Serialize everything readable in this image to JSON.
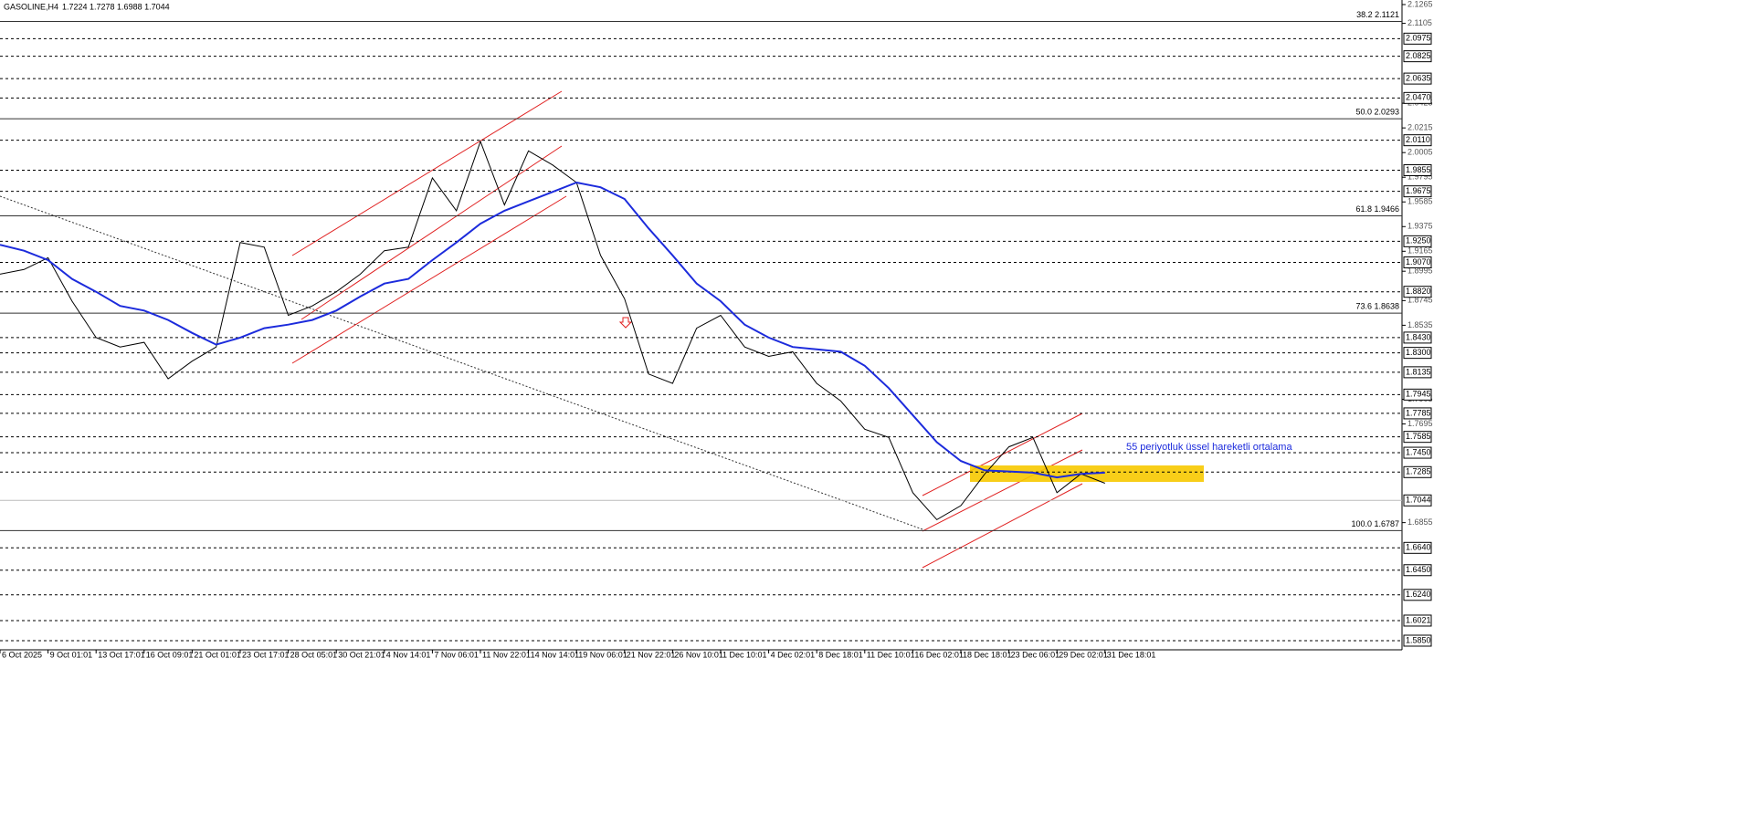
{
  "chart_data": {
    "type": "line",
    "title": "GASOLINE,H4",
    "quote": "1.7224 1.7278 1.6988 1.7044",
    "categories": [
      "6 Oct 2025",
      null,
      "9 Oct 01:01",
      null,
      "13 Oct 17:01",
      null,
      "16 Oct 09:01",
      null,
      "21 Oct 01:01",
      null,
      "23 Oct 17:01",
      null,
      "28 Oct 05:01",
      null,
      "30 Oct 21:01",
      null,
      "4 Nov 14:01",
      null,
      "7 Nov 06:01",
      null,
      "11 Nov 22:01",
      null,
      "14 Nov 14:01",
      null,
      "19 Nov 06:01",
      null,
      "21 Nov 22:01",
      null,
      "26 Nov 10:01",
      null,
      "1 Dec 10:01",
      null,
      "4 Dec 02:01",
      null,
      "8 Dec 18:01",
      null,
      "11 Dec 10:01",
      null,
      "16 Dec 02:01",
      null,
      "18 Dec 18:01",
      null,
      "23 Dec 06:01",
      null,
      "29 Dec 02:01",
      null,
      "31 Dec 18:01"
    ],
    "series": [
      {
        "color": "#000000",
        "values": [
          1.897,
          1.901,
          1.911,
          1.874,
          1.843,
          1.835,
          1.839,
          1.808,
          1.823,
          1.835,
          1.924,
          1.92,
          1.862,
          1.87,
          1.882,
          1.897,
          1.917,
          1.92,
          1.979,
          1.951,
          2.01,
          1.956,
          2.002,
          1.99,
          1.975,
          1.913,
          1.876,
          1.812,
          1.804,
          1.851,
          1.862,
          1.835,
          1.827,
          1.831,
          1.804,
          1.789,
          1.765,
          1.758,
          1.711,
          1.688,
          1.7,
          1.727,
          1.75,
          1.758,
          1.711,
          1.727,
          1.719
        ]
      },
      {
        "name": "55 periyotluk üssel hareketli ortalama",
        "color": "#1c2bdc",
        "values": [
          1.922,
          1.917,
          1.909,
          1.893,
          1.882,
          1.87,
          1.866,
          1.858,
          1.847,
          1.837,
          1.843,
          1.851,
          1.854,
          1.858,
          1.866,
          1.878,
          1.889,
          1.893,
          1.909,
          1.924,
          1.94,
          1.951,
          1.959,
          1.967,
          1.975,
          1.971,
          1.961,
          1.936,
          1.913,
          1.889,
          1.874,
          1.854,
          1.843,
          1.835,
          1.833,
          1.831,
          1.819,
          1.8,
          1.777,
          1.754,
          1.738,
          1.73,
          1.729,
          1.728,
          1.724,
          1.727,
          1.728
        ]
      }
    ],
    "ylim": [
      1.578,
      2.13
    ],
    "yticks": [
      2.1265,
      2.1105,
      2.0425,
      2.0215,
      2.0005,
      1.9795,
      1.9585,
      1.9375,
      1.9165,
      1.8995,
      1.8745,
      1.8535,
      1.7905,
      1.7695,
      1.6855
    ],
    "levels": [
      2.0975,
      2.0825,
      2.0635,
      {
        "value": 2.047,
        "label": "2.0470"
      },
      {
        "value": 2.011,
        "label": "2.0110"
      },
      1.9855,
      1.9675,
      {
        "value": 1.925,
        "label": "1.9250"
      },
      {
        "value": 1.907,
        "label": "1.9070"
      },
      {
        "value": 1.882,
        "label": "1.8820"
      },
      {
        "value": 1.843,
        "label": "1.8430"
      },
      {
        "value": 1.83,
        "label": "1.8300"
      },
      1.8135,
      1.7945,
      1.7785,
      1.7585,
      {
        "value": 1.745,
        "label": "1.7450"
      },
      1.7285,
      {
        "value": 1.664,
        "label": "1.6640"
      },
      {
        "value": 1.645,
        "label": "1.6450"
      },
      {
        "value": 1.624,
        "label": "1.6240"
      },
      1.6021,
      {
        "value": 1.585,
        "label": "1.5850"
      }
    ],
    "current_price": 1.7044,
    "fib_levels": [
      {
        "value": 2.1121,
        "label": "38.2 2.1121"
      },
      {
        "value": 2.0293,
        "label": "50.0 2.0293"
      },
      {
        "value": 1.9466,
        "label": "61.8 1.9466"
      },
      {
        "value": 1.8638,
        "label": "73.6 1.8638"
      },
      {
        "value": 1.6787,
        "label": "100.0 1.6787"
      }
    ]
  }
}
